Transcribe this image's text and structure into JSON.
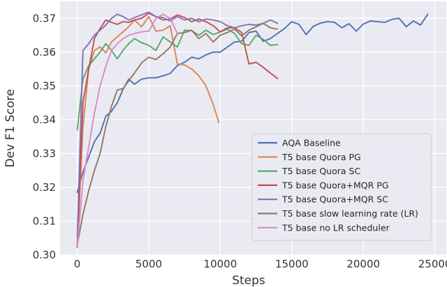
{
  "chart_data": {
    "type": "line",
    "title": "",
    "xlabel": "Steps",
    "ylabel": "Dev F1 Score",
    "xlim": [
      -1200,
      25800
    ],
    "ylim": [
      0.3,
      0.375
    ],
    "xticks": [
      0,
      5000,
      10000,
      15000,
      20000,
      25000
    ],
    "xtick_labels": [
      "0",
      "5000",
      "10000",
      "15000",
      "20000",
      "25000"
    ],
    "yticks": [
      0.3,
      0.31,
      0.32,
      0.33,
      0.34,
      0.35,
      0.36,
      0.37
    ],
    "ytick_labels": [
      "0.30",
      "0.31",
      "0.32",
      "0.33",
      "0.34",
      "0.35",
      "0.36",
      "0.37"
    ],
    "grid": true,
    "background": "#eaeaf2",
    "legend_position": "lower-right",
    "series": [
      {
        "name": "AQA Baseline",
        "color": "#4c72b0",
        "points": [
          [
            0,
            0.3185
          ],
          [
            400,
            0.3245
          ],
          [
            800,
            0.329
          ],
          [
            1200,
            0.3335
          ],
          [
            1600,
            0.336
          ],
          [
            2000,
            0.341
          ],
          [
            2400,
            0.3425
          ],
          [
            2800,
            0.345
          ],
          [
            3200,
            0.349
          ],
          [
            3600,
            0.352
          ],
          [
            4000,
            0.3505
          ],
          [
            4500,
            0.352
          ],
          [
            5000,
            0.3524
          ],
          [
            5500,
            0.3524
          ],
          [
            6000,
            0.353
          ],
          [
            6500,
            0.3537
          ],
          [
            7000,
            0.356
          ],
          [
            7500,
            0.357
          ],
          [
            8000,
            0.3585
          ],
          [
            8500,
            0.358
          ],
          [
            9000,
            0.3592
          ],
          [
            9500,
            0.36
          ],
          [
            10000,
            0.36
          ],
          [
            10500,
            0.3615
          ],
          [
            11000,
            0.363
          ],
          [
            11500,
            0.3632
          ],
          [
            12000,
            0.3658
          ],
          [
            12500,
            0.3662
          ],
          [
            13000,
            0.3632
          ],
          [
            13500,
            0.364
          ],
          [
            14000,
            0.3655
          ],
          [
            14500,
            0.367
          ],
          [
            15000,
            0.369
          ],
          [
            15500,
            0.3682
          ],
          [
            16000,
            0.3652
          ],
          [
            16500,
            0.3676
          ],
          [
            17000,
            0.3686
          ],
          [
            17500,
            0.369
          ],
          [
            18000,
            0.3688
          ],
          [
            18500,
            0.3672
          ],
          [
            19000,
            0.3684
          ],
          [
            19500,
            0.3662
          ],
          [
            20000,
            0.3683
          ],
          [
            20500,
            0.3692
          ],
          [
            21000,
            0.369
          ],
          [
            21500,
            0.3688
          ],
          [
            22000,
            0.3697
          ],
          [
            22500,
            0.37
          ],
          [
            23000,
            0.3675
          ],
          [
            23500,
            0.3692
          ],
          [
            24000,
            0.368
          ],
          [
            24500,
            0.3712
          ]
        ]
      },
      {
        "name": "T5 base Quora PG",
        "color": "#dd8452",
        "points": [
          [
            0,
            0.3027
          ],
          [
            400,
            0.338
          ],
          [
            800,
            0.355
          ],
          [
            1200,
            0.3605
          ],
          [
            1600,
            0.3615
          ],
          [
            2000,
            0.3598
          ],
          [
            2400,
            0.363
          ],
          [
            2800,
            0.3645
          ],
          [
            3200,
            0.366
          ],
          [
            3600,
            0.3675
          ],
          [
            4000,
            0.3695
          ],
          [
            4500,
            0.3675
          ],
          [
            5000,
            0.3705
          ],
          [
            5500,
            0.3662
          ],
          [
            6000,
            0.3665
          ],
          [
            6500,
            0.3678
          ],
          [
            7000,
            0.3565
          ],
          [
            7500,
            0.3562
          ],
          [
            8000,
            0.355
          ],
          [
            8500,
            0.353
          ],
          [
            9000,
            0.35
          ],
          [
            9500,
            0.3445
          ],
          [
            9900,
            0.3392
          ]
        ]
      },
      {
        "name": "T5 base Quora SC",
        "color": "#55a868",
        "points": [
          [
            0,
            0.337
          ],
          [
            400,
            0.352
          ],
          [
            800,
            0.356
          ],
          [
            1200,
            0.358
          ],
          [
            1600,
            0.36
          ],
          [
            2000,
            0.3625
          ],
          [
            2400,
            0.3605
          ],
          [
            2800,
            0.358
          ],
          [
            3200,
            0.3605
          ],
          [
            3600,
            0.3625
          ],
          [
            4000,
            0.364
          ],
          [
            4500,
            0.3628
          ],
          [
            5000,
            0.362
          ],
          [
            5500,
            0.3605
          ],
          [
            6000,
            0.3645
          ],
          [
            6500,
            0.363
          ],
          [
            7000,
            0.3615
          ],
          [
            7500,
            0.3665
          ],
          [
            8000,
            0.3663
          ],
          [
            8500,
            0.365
          ],
          [
            9000,
            0.3665
          ],
          [
            9500,
            0.3652
          ],
          [
            10000,
            0.366
          ],
          [
            10500,
            0.3668
          ],
          [
            11000,
            0.3655
          ],
          [
            11500,
            0.3625
          ],
          [
            12000,
            0.362
          ],
          [
            12500,
            0.365
          ],
          [
            13000,
            0.3638
          ],
          [
            13500,
            0.362
          ],
          [
            14000,
            0.3622
          ]
        ]
      },
      {
        "name": "T5 base Quora+MQR PG",
        "color": "#c44e52",
        "points": [
          [
            0,
            0.3022
          ],
          [
            400,
            0.345
          ],
          [
            800,
            0.355
          ],
          [
            1200,
            0.364
          ],
          [
            1600,
            0.367
          ],
          [
            2000,
            0.3695
          ],
          [
            2400,
            0.3688
          ],
          [
            2800,
            0.3682
          ],
          [
            3200,
            0.369
          ],
          [
            3600,
            0.3688
          ],
          [
            4000,
            0.3695
          ],
          [
            4500,
            0.37
          ],
          [
            5000,
            0.3715
          ],
          [
            5500,
            0.3705
          ],
          [
            6000,
            0.3695
          ],
          [
            6500,
            0.3698
          ],
          [
            7000,
            0.371
          ],
          [
            7500,
            0.3702
          ],
          [
            8000,
            0.369
          ],
          [
            8500,
            0.3698
          ],
          [
            9000,
            0.369
          ],
          [
            9500,
            0.3678
          ],
          [
            10000,
            0.366
          ],
          [
            10500,
            0.3672
          ],
          [
            11000,
            0.3672
          ],
          [
            11500,
            0.3658
          ],
          [
            12000,
            0.3565
          ],
          [
            12500,
            0.357
          ],
          [
            13000,
            0.3555
          ],
          [
            13500,
            0.3538
          ],
          [
            14000,
            0.3522
          ]
        ]
      },
      {
        "name": "T5 base Quora+MQR SC",
        "color": "#8172b3",
        "points": [
          [
            0,
            0.305
          ],
          [
            400,
            0.3605
          ],
          [
            800,
            0.3625
          ],
          [
            1200,
            0.365
          ],
          [
            1600,
            0.3665
          ],
          [
            2000,
            0.368
          ],
          [
            2400,
            0.37
          ],
          [
            2800,
            0.3712
          ],
          [
            3200,
            0.3705
          ],
          [
            3600,
            0.3695
          ],
          [
            4000,
            0.3702
          ],
          [
            4500,
            0.371
          ],
          [
            5000,
            0.3718
          ],
          [
            5500,
            0.3705
          ],
          [
            6000,
            0.3702
          ],
          [
            6500,
            0.3692
          ],
          [
            7000,
            0.3705
          ],
          [
            7500,
            0.3695
          ],
          [
            8000,
            0.37
          ],
          [
            8500,
            0.369
          ],
          [
            9000,
            0.3698
          ],
          [
            9500,
            0.3695
          ],
          [
            10000,
            0.369
          ],
          [
            10500,
            0.3678
          ],
          [
            11000,
            0.3672
          ],
          [
            11500,
            0.3678
          ],
          [
            12000,
            0.3682
          ],
          [
            12500,
            0.368
          ],
          [
            13000,
            0.3685
          ],
          [
            13500,
            0.3695
          ],
          [
            14000,
            0.3685
          ]
        ]
      },
      {
        "name": "T5 base slow learning rate (LR)",
        "color": "#937860",
        "points": [
          [
            0,
            0.303
          ],
          [
            400,
            0.312
          ],
          [
            800,
            0.319
          ],
          [
            1200,
            0.325
          ],
          [
            1600,
            0.33
          ],
          [
            2000,
            0.338
          ],
          [
            2400,
            0.344
          ],
          [
            2800,
            0.3488
          ],
          [
            3200,
            0.3492
          ],
          [
            3600,
            0.3515
          ],
          [
            4000,
            0.3538
          ],
          [
            4500,
            0.3568
          ],
          [
            5000,
            0.3585
          ],
          [
            5500,
            0.3578
          ],
          [
            6000,
            0.3595
          ],
          [
            6500,
            0.3615
          ],
          [
            7000,
            0.3655
          ],
          [
            7500,
            0.3658
          ],
          [
            8000,
            0.3665
          ],
          [
            8500,
            0.364
          ],
          [
            9000,
            0.3655
          ],
          [
            9500,
            0.363
          ],
          [
            10000,
            0.365
          ],
          [
            10500,
            0.3658
          ],
          [
            11000,
            0.3668
          ],
          [
            11500,
            0.3648
          ],
          [
            12000,
            0.3665
          ],
          [
            12500,
            0.3675
          ],
          [
            13000,
            0.3685
          ],
          [
            13500,
            0.3672
          ],
          [
            14000,
            0.3668
          ]
        ]
      },
      {
        "name": "T5 base no LR scheduler",
        "color": "#da8bc3",
        "points": [
          [
            0,
            0.3025
          ],
          [
            400,
            0.322
          ],
          [
            800,
            0.332
          ],
          [
            1200,
            0.342
          ],
          [
            1600,
            0.35
          ],
          [
            2000,
            0.3558
          ],
          [
            2400,
            0.3605
          ],
          [
            2800,
            0.3625
          ],
          [
            3200,
            0.364
          ],
          [
            3600,
            0.365
          ],
          [
            4000,
            0.3655
          ],
          [
            4500,
            0.366
          ],
          [
            5000,
            0.3662
          ],
          [
            5500,
            0.37
          ],
          [
            6000,
            0.3712
          ],
          [
            6500,
            0.37
          ],
          [
            7000,
            0.3655
          ]
        ]
      }
    ]
  }
}
